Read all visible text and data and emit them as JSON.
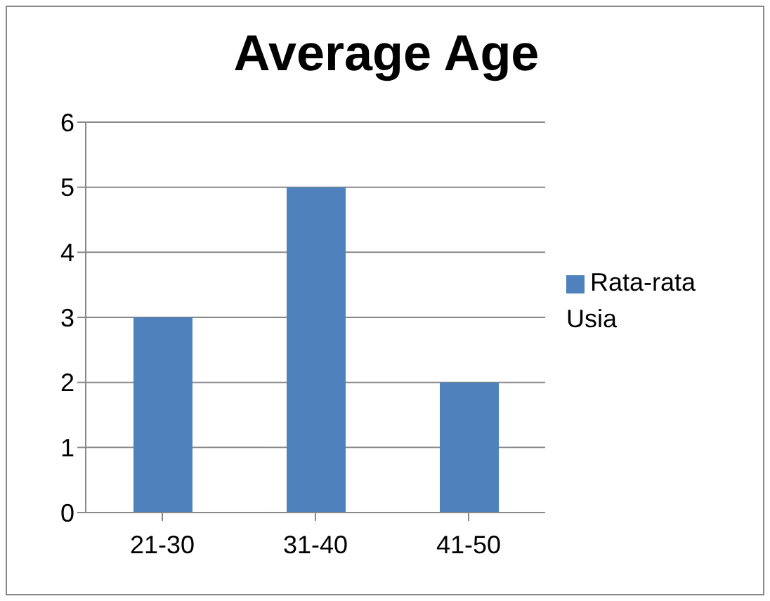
{
  "chart_data": {
    "type": "bar",
    "title": "Average Age",
    "categories": [
      "21-30",
      "31-40",
      "41-50"
    ],
    "series": [
      {
        "name": "Rata-rata Usia",
        "color": "#4f81bd",
        "values": [
          3,
          5,
          2
        ]
      }
    ],
    "ylim": [
      0,
      6
    ],
    "yticks": [
      0,
      1,
      2,
      3,
      4,
      5,
      6
    ],
    "grid": "y",
    "legend": "right"
  }
}
